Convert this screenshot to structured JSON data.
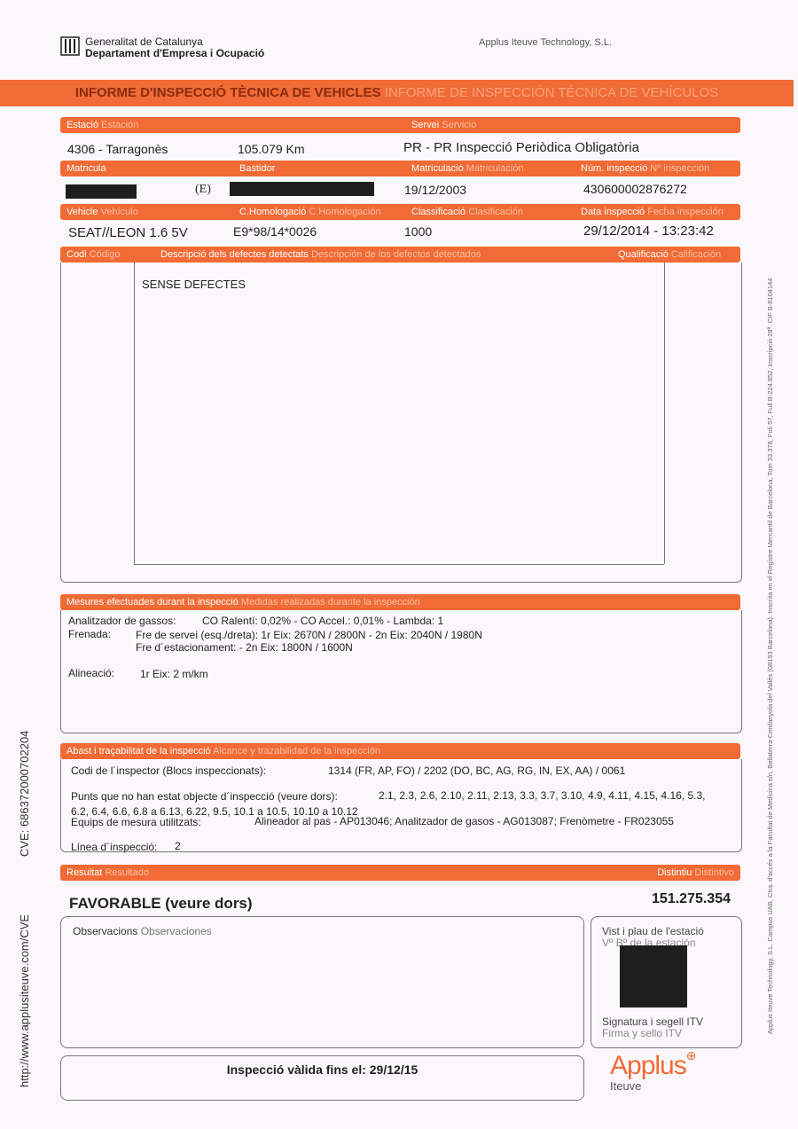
{
  "header": {
    "org_line1": "Generalitat de Catalunya",
    "org_line2": "Departament d'Empresa i Ocupació",
    "company": "Applus Iteuve Technology, S.L.",
    "title_ca": "INFORME D'INSPECCIÓ TÈCNICA DE VEHICLES",
    "title_es": "INFORME DE INSPECCIÓN TÉCNICA DE VEHÍCULOS"
  },
  "fields": {
    "estacio_ca": "Estació",
    "estacio_es": "Estación",
    "estacio_val": "4306 - Tarragonès",
    "km_val": "105.079 Km",
    "servei_ca": "Servei",
    "servei_es": "Servicio",
    "servei_val": "PR - PR Inspecció Periòdica Obligatòria",
    "matricula_ca": "Matricula",
    "matricula_suffix": "(E)",
    "bastidor_ca": "Bastidor",
    "matriculacio_ca": "Matriculació",
    "matriculacio_es": "Matriculación",
    "matriculacio_val": "19/12/2003",
    "num_ca": "Núm. inspecció",
    "num_es": "Nº inspección",
    "num_val": "430600002876272",
    "vehicle_ca": "Vehicle",
    "vehicle_es": "Vehículo",
    "vehicle_val": "SEAT//LEON 1.6 5V",
    "homol_ca": "C.Homologació",
    "homol_es": "C.Homologación",
    "homol_val": "E9*98/14*0026",
    "classif_ca": "Classificació",
    "classif_es": "Clasificación",
    "classif_val": "1000",
    "data_ca": "Data inspecció",
    "data_es": "Fecha inspección",
    "data_val": "29/12/2014 - 13:23:42"
  },
  "defects": {
    "codi_ca": "Codi",
    "codi_es": "Código",
    "desc_ca": "Descripció dels defectes detectats",
    "desc_es": "Descripción de los defectos detectados",
    "qual_ca": "Qualificació",
    "qual_es": "Calificación",
    "text": "SENSE DEFECTES"
  },
  "measures": {
    "title_ca": "Mesures efectuades durant la inspecció",
    "title_es": "Medidas realizadas durante la inspección",
    "gas_label": "Analitzador de gassos:",
    "gas_val": "CO Ralentí: 0,02% - CO Accel.: 0,01% - Lambda: 1",
    "brake_label": "Frenada:",
    "brake_val1": "Fre de servei (esq./dreta): 1r Eix: 2670N / 2800N - 2n Eix: 2040N / 1980N",
    "brake_val2": "Fre d´estacionament:  - 2n Eix: 1800N / 1600N",
    "align_label": "Alineació:",
    "align_val": "1r Eix: 2 m/km"
  },
  "scope": {
    "title_ca": "Abast i traçabilitat de la inspecció",
    "title_es": "Alcance y trazabilidad de la inspección",
    "inspector_label": "Codi de l´inspector (Blocs inspeccionats):",
    "inspector_val": "1314 (FR, AP, FO) / 2202 (DO, BC, AG, RG, IN, EX, AA)  / 0061",
    "points_label": "Punts que no han estat objecte d´inspecció (veure dors):",
    "points_val1": "2.1, 2.3, 2.6, 2.10, 2.11, 2.13, 3.3, 3.7, 3.10, 4.9, 4.11, 4.15, 4.16, 5.3,",
    "points_val2": "6.2, 6.4, 6.6, 6.8 a 6.13, 6.22, 9.5, 10.1 a 10.5, 10.10 a 10.12",
    "equip_label": "Equips de mesura utilitzats:",
    "equip_val": "Alineador al pas - AP013046; Analitzador de gasos - AG013087; Frenòmetre - FR023055",
    "line_label": "Línea d´inspecció:",
    "line_val": "2"
  },
  "result": {
    "title_ca": "Resultat",
    "title_es": "Resultado",
    "badge_ca": "Distintiu",
    "badge_es": "Distintivo",
    "value": "FAVORABLE (veure dors)",
    "badge_val": "151.275.354",
    "obs_ca": "Observacions",
    "obs_es": "Observaciones",
    "vist_ca": "Vist i plau de l'estació",
    "vist_es": "Vº Bº de la estación",
    "sign_ca": "Signatura i segell ITV",
    "sign_es": "Firma y sello ITV",
    "valid": "Inspecció vàlida fins el: 29/12/15"
  },
  "logo": {
    "brand": "Applus",
    "sub": "Iteuve",
    "color": "#f26a35"
  },
  "side": {
    "left_url": "http://www.applusiteuve.com/CVE",
    "left_cve": "CVE: 686372000702204",
    "right_text": "Applus Iteuve Technology, S.L. Campus UAB, Ctra. d'accés a la Facultat de Medicina s/n, Bellaterra-Cerdanyola del Vallès (08193 Barcelona). Inscrita en el Registre Mercantil de Barcelona, Tom 33.378, Foli 57, Full B-224.852, Inscripció 28ª. CIF B-8104144"
  }
}
